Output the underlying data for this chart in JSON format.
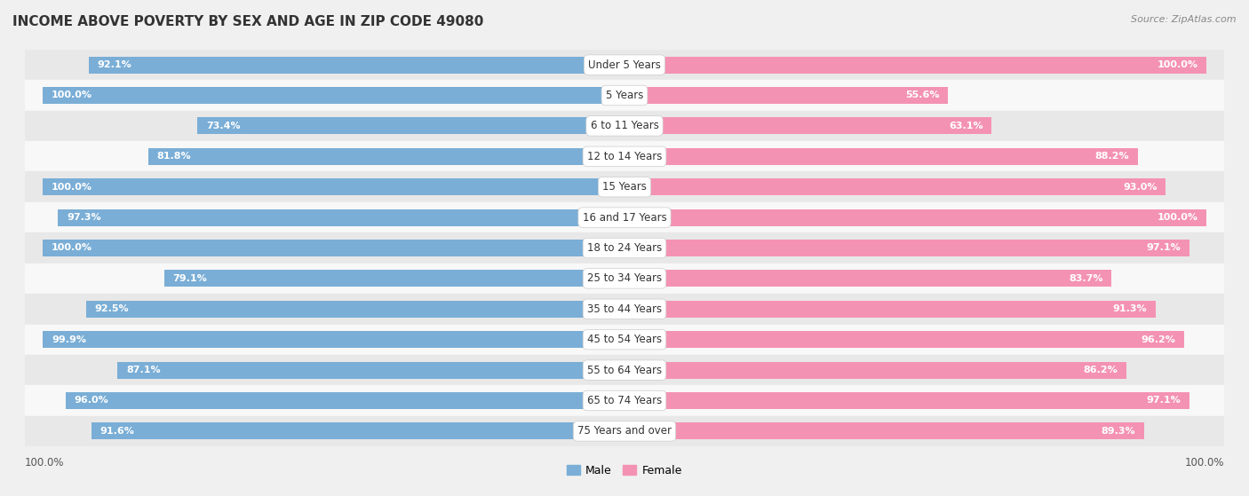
{
  "title": "INCOME ABOVE POVERTY BY SEX AND AGE IN ZIP CODE 49080",
  "source": "Source: ZipAtlas.com",
  "categories": [
    "Under 5 Years",
    "5 Years",
    "6 to 11 Years",
    "12 to 14 Years",
    "15 Years",
    "16 and 17 Years",
    "18 to 24 Years",
    "25 to 34 Years",
    "35 to 44 Years",
    "45 to 54 Years",
    "55 to 64 Years",
    "65 to 74 Years",
    "75 Years and over"
  ],
  "male_values": [
    92.1,
    100.0,
    73.4,
    81.8,
    100.0,
    97.3,
    100.0,
    79.1,
    92.5,
    99.9,
    87.1,
    96.0,
    91.6
  ],
  "female_values": [
    100.0,
    55.6,
    63.1,
    88.2,
    93.0,
    100.0,
    97.1,
    83.7,
    91.3,
    96.2,
    86.2,
    97.1,
    89.3
  ],
  "male_color": "#7aaed6",
  "female_color": "#f492b4",
  "male_label": "Male",
  "female_label": "Female",
  "background_color": "#f0f0f0",
  "row_colors": [
    "#e8e8e8",
    "#f8f8f8"
  ],
  "xlabel_bottom_left": "100.0%",
  "xlabel_bottom_right": "100.0%",
  "title_fontsize": 11,
  "source_fontsize": 8,
  "label_fontsize": 8,
  "value_fontsize": 8,
  "tick_fontsize": 8.5
}
